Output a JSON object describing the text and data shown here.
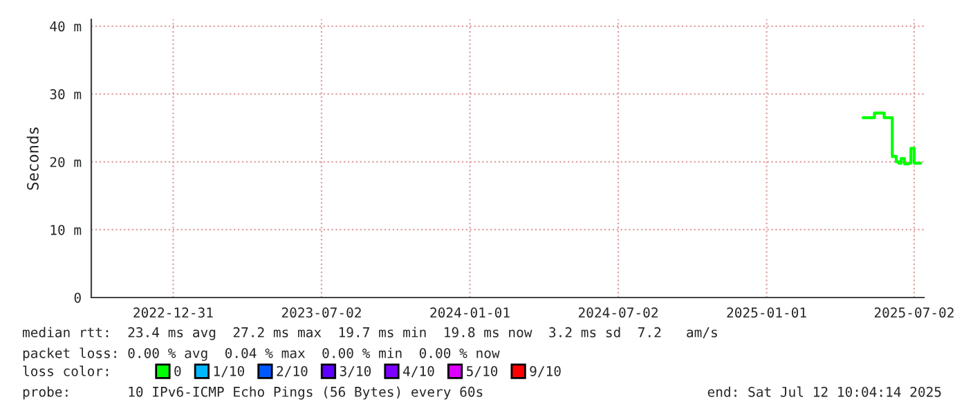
{
  "chart_data": {
    "type": "step",
    "ylabel": "Seconds",
    "xlim": [
      "2022-09-21",
      "2025-07-14"
    ],
    "xticks": [
      "2022-12-31",
      "2023-07-02",
      "2024-01-01",
      "2024-07-02",
      "2025-01-01",
      "2025-07-02"
    ],
    "ylim": [
      0,
      41
    ],
    "yticks": [
      0,
      {
        "value": 10,
        "label": "10 m"
      },
      {
        "value": 20,
        "label": "20 m"
      },
      {
        "value": 30,
        "label": "30 m"
      },
      {
        "value": 40,
        "label": "40 m"
      }
    ],
    "grid": true,
    "legend": "bottom",
    "legend_title": "loss color:",
    "x": [
      "2025-04-30",
      "2025-05-09",
      "2025-05-14",
      "2025-05-23",
      "2025-05-26",
      "2025-06-04",
      "2025-06-05",
      "2025-06-10",
      "2025-06-13",
      "2025-06-16",
      "2025-06-20",
      "2025-06-25",
      "2025-06-28",
      "2025-07-02",
      "2025-07-10"
    ],
    "series": [
      {
        "name": "0",
        "color": "#00ff00",
        "values": [
          26.5,
          26.5,
          27.2,
          27.2,
          26.5,
          26.5,
          20.8,
          20.0,
          19.8,
          20.5,
          19.7,
          19.8,
          22.0,
          19.8,
          19.8
        ]
      },
      {
        "name": "1/10",
        "color": "#00b8ff",
        "values": [
          null,
          null,
          null,
          null,
          null,
          null,
          null,
          null,
          null,
          null,
          null,
          null,
          null,
          null,
          null
        ]
      },
      {
        "name": "2/10",
        "color": "#0059ff",
        "values": [
          null,
          null,
          null,
          null,
          null,
          null,
          null,
          null,
          null,
          null,
          null,
          null,
          null,
          null,
          null
        ]
      },
      {
        "name": "3/10",
        "color": "#5e00ff",
        "values": [
          null,
          null,
          null,
          null,
          null,
          null,
          null,
          null,
          null,
          null,
          null,
          null,
          null,
          null,
          null
        ]
      },
      {
        "name": "4/10",
        "color": "#7e00ff",
        "values": [
          null,
          null,
          null,
          null,
          null,
          null,
          null,
          null,
          null,
          null,
          null,
          null,
          null,
          null,
          null
        ]
      },
      {
        "name": "5/10",
        "color": "#dd00ff",
        "values": [
          null,
          null,
          null,
          null,
          null,
          null,
          null,
          null,
          null,
          null,
          null,
          null,
          null,
          null,
          null
        ]
      },
      {
        "name": "9/10",
        "color": "#ff0000",
        "values": [
          null,
          null,
          null,
          null,
          null,
          null,
          null,
          null,
          null,
          null,
          null,
          null,
          null,
          null,
          null
        ]
      }
    ],
    "annotations": [
      "median rtt:  23.4 ms avg  27.2 ms max  19.7 ms min  19.8 ms now  3.2 ms sd  7.2   am/s",
      "packet loss: 0.00 % avg  0.04 % max  0.00 % min  0.00 % now",
      "probe:       10 IPv6-ICMP Echo Pings (56 Bytes) every 60s",
      "end: Sat Jul 12 10:04:14 2025"
    ]
  }
}
